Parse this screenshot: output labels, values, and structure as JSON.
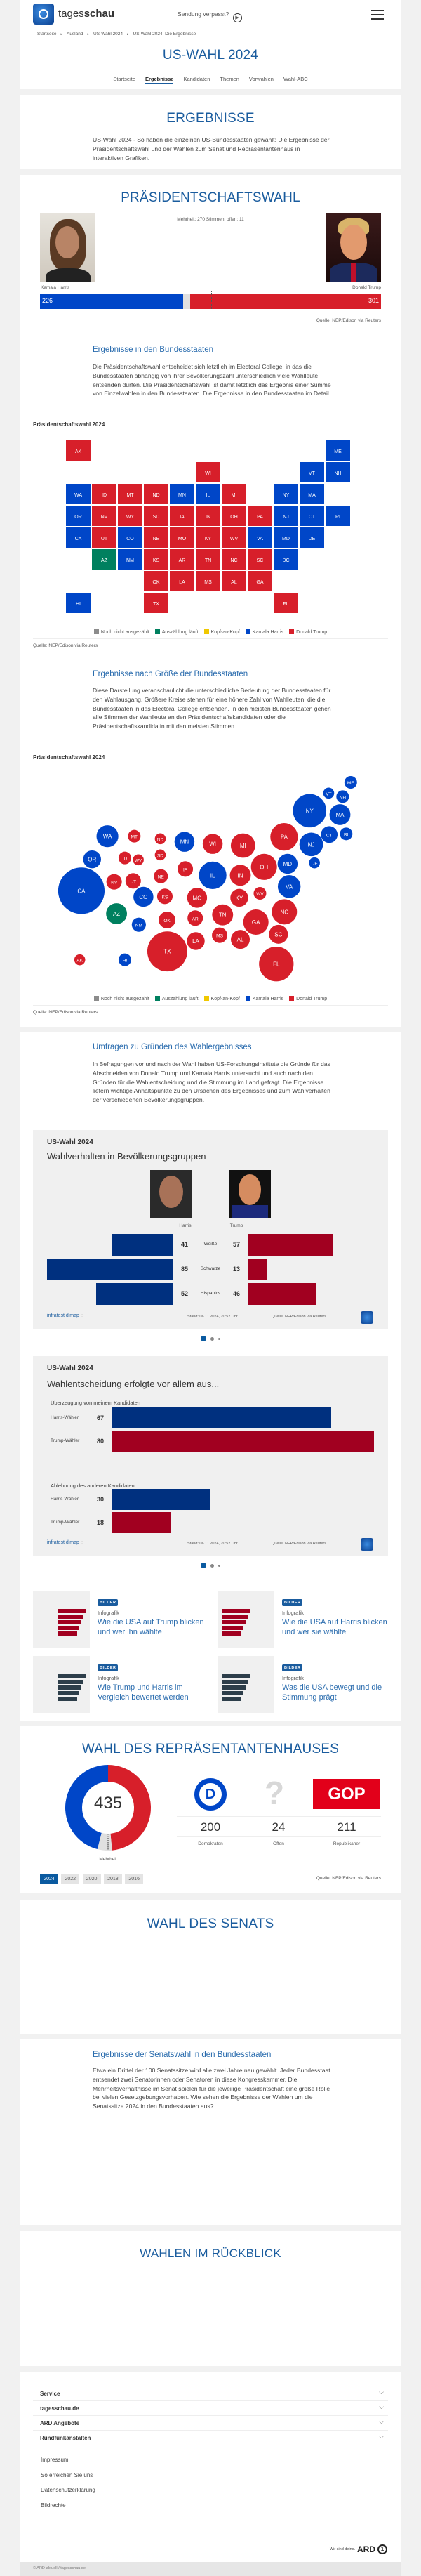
{
  "header": {
    "logo_text_light": "tages",
    "logo_text_bold": "schau",
    "missed_label": "Sendung verpasst?"
  },
  "breadcrumb": [
    "Startseite",
    "Ausland",
    "US-Wahl 2024",
    "US-Wahl 2024: Die Ergebnisse"
  ],
  "page_title": "US-WAHL 2024",
  "nav": [
    {
      "label": "Startseite"
    },
    {
      "label": "Ergebnisse",
      "active": true
    },
    {
      "label": "Kandidaten"
    },
    {
      "label": "Themen"
    },
    {
      "label": "Vorwahlen"
    },
    {
      "label": "Wahl-ABC"
    }
  ],
  "intro": {
    "title": "ERGEBNISSE",
    "text": "US-Wahl 2024 - So haben die einzelnen US-Bundesstaaten gewählt: Die Ergebnisse der Präsidentschaftswahl und der Wahlen zum Senat und Repräsentantenhaus in interaktiven Grafiken."
  },
  "president": {
    "title": "PRÄSIDENTSCHAFTSWAHL",
    "majority_note": "Mehrheit: 270 Stimmen, offen: 11",
    "harris": {
      "name": "Kamala Harris",
      "votes": 226,
      "color": "#0046c8"
    },
    "trump": {
      "name": "Donald Trump",
      "votes": 301,
      "color": "#d71f2a"
    },
    "open": 11,
    "total": 538,
    "majority": 270,
    "source": "Quelle: NEP/Edison via Reuters",
    "states_heading": "Ergebnisse in den Bundesstaaten",
    "states_text": "Die Präsidentschaftswahl entscheidet sich letztlich im Electoral College, in das die Bundesstaaten abhängig von ihrer Bevölkerungszahl unterschiedlich viele Wahlleute entsenden dürfen. Die Präsidentschaftswahl ist damit letztlich das Ergebnis einer Summe von Einzelwahlen in den Bundesstaaten. Die Ergebnisse in den Bundesstaaten im Detail.",
    "map_title": "Präsidentschaftswahl 2024",
    "size_heading": "Ergebnisse nach Größe der Bundesstaaten",
    "size_text": "Diese Darstellung veranschaulicht die unterschiedliche Bedeutung der Bundesstaaten für den Wahlausgang. Größere Kreise stehen für eine höhere Zahl von Wahlleuten, die die Bundesstaaten in das Electoral College entsenden. In den meisten Bundesstaaten gehen alle Stimmen der Wahlleute an den Präsidentschaftskandidaten oder die Präsidentschaftskandidatin mit den meisten Stimmen.",
    "bubble_title": "Präsidentschaftswahl 2024",
    "source_left": "Quelle: NEP/Edison via Reuters"
  },
  "legend": [
    {
      "label": "Noch nicht ausgezählt",
      "color": "#8c8c8c"
    },
    {
      "label": "Auszählung läuft",
      "color": "#00805f"
    },
    {
      "label": "Kopf-an-Kopf",
      "color": "#f0c800"
    },
    {
      "label": "Kamala Harris",
      "color": "#0046c8"
    },
    {
      "label": "Donald Trump",
      "color": "#d71f2a"
    }
  ],
  "states": [
    {
      "code": "AK",
      "w": "R",
      "ev": 3
    },
    {
      "code": "AL",
      "w": "R",
      "ev": 9
    },
    {
      "code": "AR",
      "w": "R",
      "ev": 6
    },
    {
      "code": "AZ",
      "w": "C",
      "ev": 11
    },
    {
      "code": "CA",
      "w": "D",
      "ev": 54
    },
    {
      "code": "CO",
      "w": "D",
      "ev": 10
    },
    {
      "code": "CT",
      "w": "D",
      "ev": 7
    },
    {
      "code": "DC",
      "w": "D",
      "ev": 3
    },
    {
      "code": "DE",
      "w": "D",
      "ev": 3
    },
    {
      "code": "FL",
      "w": "R",
      "ev": 30
    },
    {
      "code": "GA",
      "w": "R",
      "ev": 16
    },
    {
      "code": "HI",
      "w": "D",
      "ev": 4
    },
    {
      "code": "IA",
      "w": "R",
      "ev": 6
    },
    {
      "code": "ID",
      "w": "R",
      "ev": 4
    },
    {
      "code": "IL",
      "w": "D",
      "ev": 19
    },
    {
      "code": "IN",
      "w": "R",
      "ev": 11
    },
    {
      "code": "KS",
      "w": "R",
      "ev": 6
    },
    {
      "code": "KY",
      "w": "R",
      "ev": 8
    },
    {
      "code": "LA",
      "w": "R",
      "ev": 8
    },
    {
      "code": "MA",
      "w": "D",
      "ev": 11
    },
    {
      "code": "MD",
      "w": "D",
      "ev": 10
    },
    {
      "code": "ME",
      "w": "D",
      "ev": 4
    },
    {
      "code": "MI",
      "w": "R",
      "ev": 15
    },
    {
      "code": "MN",
      "w": "D",
      "ev": 10
    },
    {
      "code": "MO",
      "w": "R",
      "ev": 10
    },
    {
      "code": "MS",
      "w": "R",
      "ev": 6
    },
    {
      "code": "MT",
      "w": "R",
      "ev": 4
    },
    {
      "code": "NC",
      "w": "R",
      "ev": 16
    },
    {
      "code": "ND",
      "w": "R",
      "ev": 3
    },
    {
      "code": "NE",
      "w": "R",
      "ev": 5
    },
    {
      "code": "NH",
      "w": "D",
      "ev": 4
    },
    {
      "code": "NJ",
      "w": "D",
      "ev": 14
    },
    {
      "code": "NM",
      "w": "D",
      "ev": 5
    },
    {
      "code": "NV",
      "w": "R",
      "ev": 6
    },
    {
      "code": "NY",
      "w": "D",
      "ev": 28
    },
    {
      "code": "OH",
      "w": "R",
      "ev": 17
    },
    {
      "code": "OK",
      "w": "R",
      "ev": 7
    },
    {
      "code": "OR",
      "w": "D",
      "ev": 8
    },
    {
      "code": "PA",
      "w": "R",
      "ev": 19
    },
    {
      "code": "RI",
      "w": "D",
      "ev": 4
    },
    {
      "code": "SC",
      "w": "R",
      "ev": 9
    },
    {
      "code": "SD",
      "w": "R",
      "ev": 3
    },
    {
      "code": "TN",
      "w": "R",
      "ev": 11
    },
    {
      "code": "TX",
      "w": "R",
      "ev": 40
    },
    {
      "code": "UT",
      "w": "R",
      "ev": 6
    },
    {
      "code": "VA",
      "w": "D",
      "ev": 13
    },
    {
      "code": "VT",
      "w": "D",
      "ev": 3
    },
    {
      "code": "WA",
      "w": "D",
      "ev": 12
    },
    {
      "code": "WI",
      "w": "R",
      "ev": 10
    },
    {
      "code": "WV",
      "w": "R",
      "ev": 4
    },
    {
      "code": "WY",
      "w": "R",
      "ev": 3
    }
  ],
  "polls": {
    "heading": "Umfragen zu Gründen des Wahlergebnisses",
    "text": "In Befragungen vor und nach der Wahl haben US-Forschungsinstitute die Gründe für das Abschneiden von Donald Trump und Kamala Harris untersucht und auch nach den Gründen für die Wahlentscheidung und die Stimmung im Land gefragt. Die Ergebnisse liefern wichtige Anhaltspunkte zu den Ursachen des Ergebnisses und zum Wahlverhalten der verschiedenen Bevölkerungsgruppen.",
    "colors": {
      "harris": "#00307f",
      "trump": "#a10020"
    },
    "box1": {
      "kicker": "US-Wahl 2024",
      "title": "Wahlverhalten in Bevölkerungsgruppen",
      "harris_label": "Harris",
      "trump_label": "Trump",
      "rows": [
        {
          "group": "Weiße",
          "harris": 41,
          "trump": 57
        },
        {
          "group": "Schwarze",
          "harris": 85,
          "trump": 13
        },
        {
          "group": "Hispanics",
          "harris": 52,
          "trump": 46
        }
      ]
    },
    "box2": {
      "kicker": "US-Wahl 2024",
      "title": "Wahlentscheidung erfolgte vor allem aus...",
      "sections": [
        {
          "title": "Überzeugung von meinem Kandidaten",
          "rows": [
            {
              "label": "Harris-Wähler",
              "value": 67,
              "party": "harris"
            },
            {
              "label": "Trump-Wähler",
              "value": 80,
              "party": "trump"
            }
          ]
        },
        {
          "title": "Ablehnung des anderen Kandidaten",
          "rows": [
            {
              "label": "Harris-Wähler",
              "value": 30,
              "party": "harris"
            },
            {
              "label": "Trump-Wähler",
              "value": 18,
              "party": "trump"
            }
          ]
        }
      ]
    },
    "brand": "infratest dimap",
    "stand": "Stand:  06.11.2024, 20:52 Uhr",
    "source": "Quelle: NEP/Edison via Reuters",
    "carousel_active": 1,
    "carousel_count": 3
  },
  "teasers": [
    {
      "badge": "BILDER",
      "kicker": "Infografik",
      "title": "Wie die USA auf Trump blicken und wer ihn wählte"
    },
    {
      "badge": "BILDER",
      "kicker": "Infografik",
      "title": "Wie die USA auf Harris blicken und wer sie wählte"
    },
    {
      "badge": "BILDER",
      "kicker": "Infografik",
      "title": "Wie Trump und Harris im Vergleich bewertet werden"
    },
    {
      "badge": "BILDER",
      "kicker": "Infografik",
      "title": "Was die USA bewegt und die Stimmung prägt"
    }
  ],
  "house": {
    "title": "WAHL DES REPRÄSENTANTENHAUSES",
    "total": "435",
    "majority_label": "Mehrheit",
    "dem": {
      "value": 200,
      "label": "Demokraten",
      "logo": "D",
      "color": "#0046c8"
    },
    "open": {
      "value": 24,
      "label": "Offen",
      "logo": "?",
      "color": "#e0e0e0"
    },
    "rep": {
      "value": 211,
      "label": "Republikaner",
      "logo": "GOP",
      "color": "#d71f2a"
    },
    "years": [
      "2024",
      "2022",
      "2020",
      "2018",
      "2016"
    ],
    "active_year": "2024",
    "source": "Quelle: NEP/Edison via Reuters"
  },
  "senate": {
    "title": "WAHL DES SENATS",
    "heading": "Ergebnisse der Senatswahl in den Bundesstaaten",
    "text": "Etwa ein Drittel der 100 Senatssitze wird alle zwei Jahre neu gewählt. Jeder Bundesstaat entsendet zwei Senatorinnen oder Senatoren in diese Kongresskammer. Die Mehrheitsverhältnisse im Senat spielen für die jeweilige Präsidentschaft eine große Rolle bei vielen Gesetzgebungsvorhaben. Wie sehen die Ergebnisse der Wahlen um die Senatssitze 2024 in den Bundesstaaten aus?"
  },
  "review": {
    "title": "WAHLEN IM RÜCKBLICK"
  },
  "footer": {
    "accordion": [
      "Service",
      "tagesschau.de",
      "ARD Angebote",
      "Rundfunkanstalten"
    ],
    "links": [
      "Impressum",
      "So erreichen Sie uns",
      "Datenschutzerklärung",
      "Bildrechte"
    ],
    "ard_claim": "Wir sind deins.",
    "ard_logo": "ARD",
    "copyright": "© ARD-aktuell / tagesschau.de"
  }
}
